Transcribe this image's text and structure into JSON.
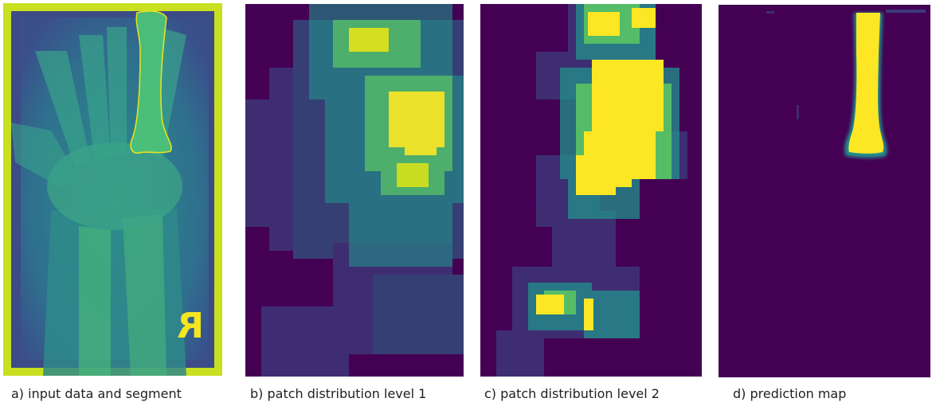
{
  "panels": [
    {
      "id": "a",
      "caption": "a) input data and segment"
    },
    {
      "id": "b",
      "caption": "b) patch distribution level 1"
    },
    {
      "id": "c",
      "caption": "c) patch distribution level 2"
    },
    {
      "id": "d",
      "caption": "d) prediction map"
    }
  ],
  "xray_marker": "R",
  "colormap": {
    "name": "viridis",
    "low": "#440154",
    "mid_low": "#3b528b",
    "mid": "#21918c",
    "mid_high": "#5ec962",
    "high": "#fde725"
  }
}
